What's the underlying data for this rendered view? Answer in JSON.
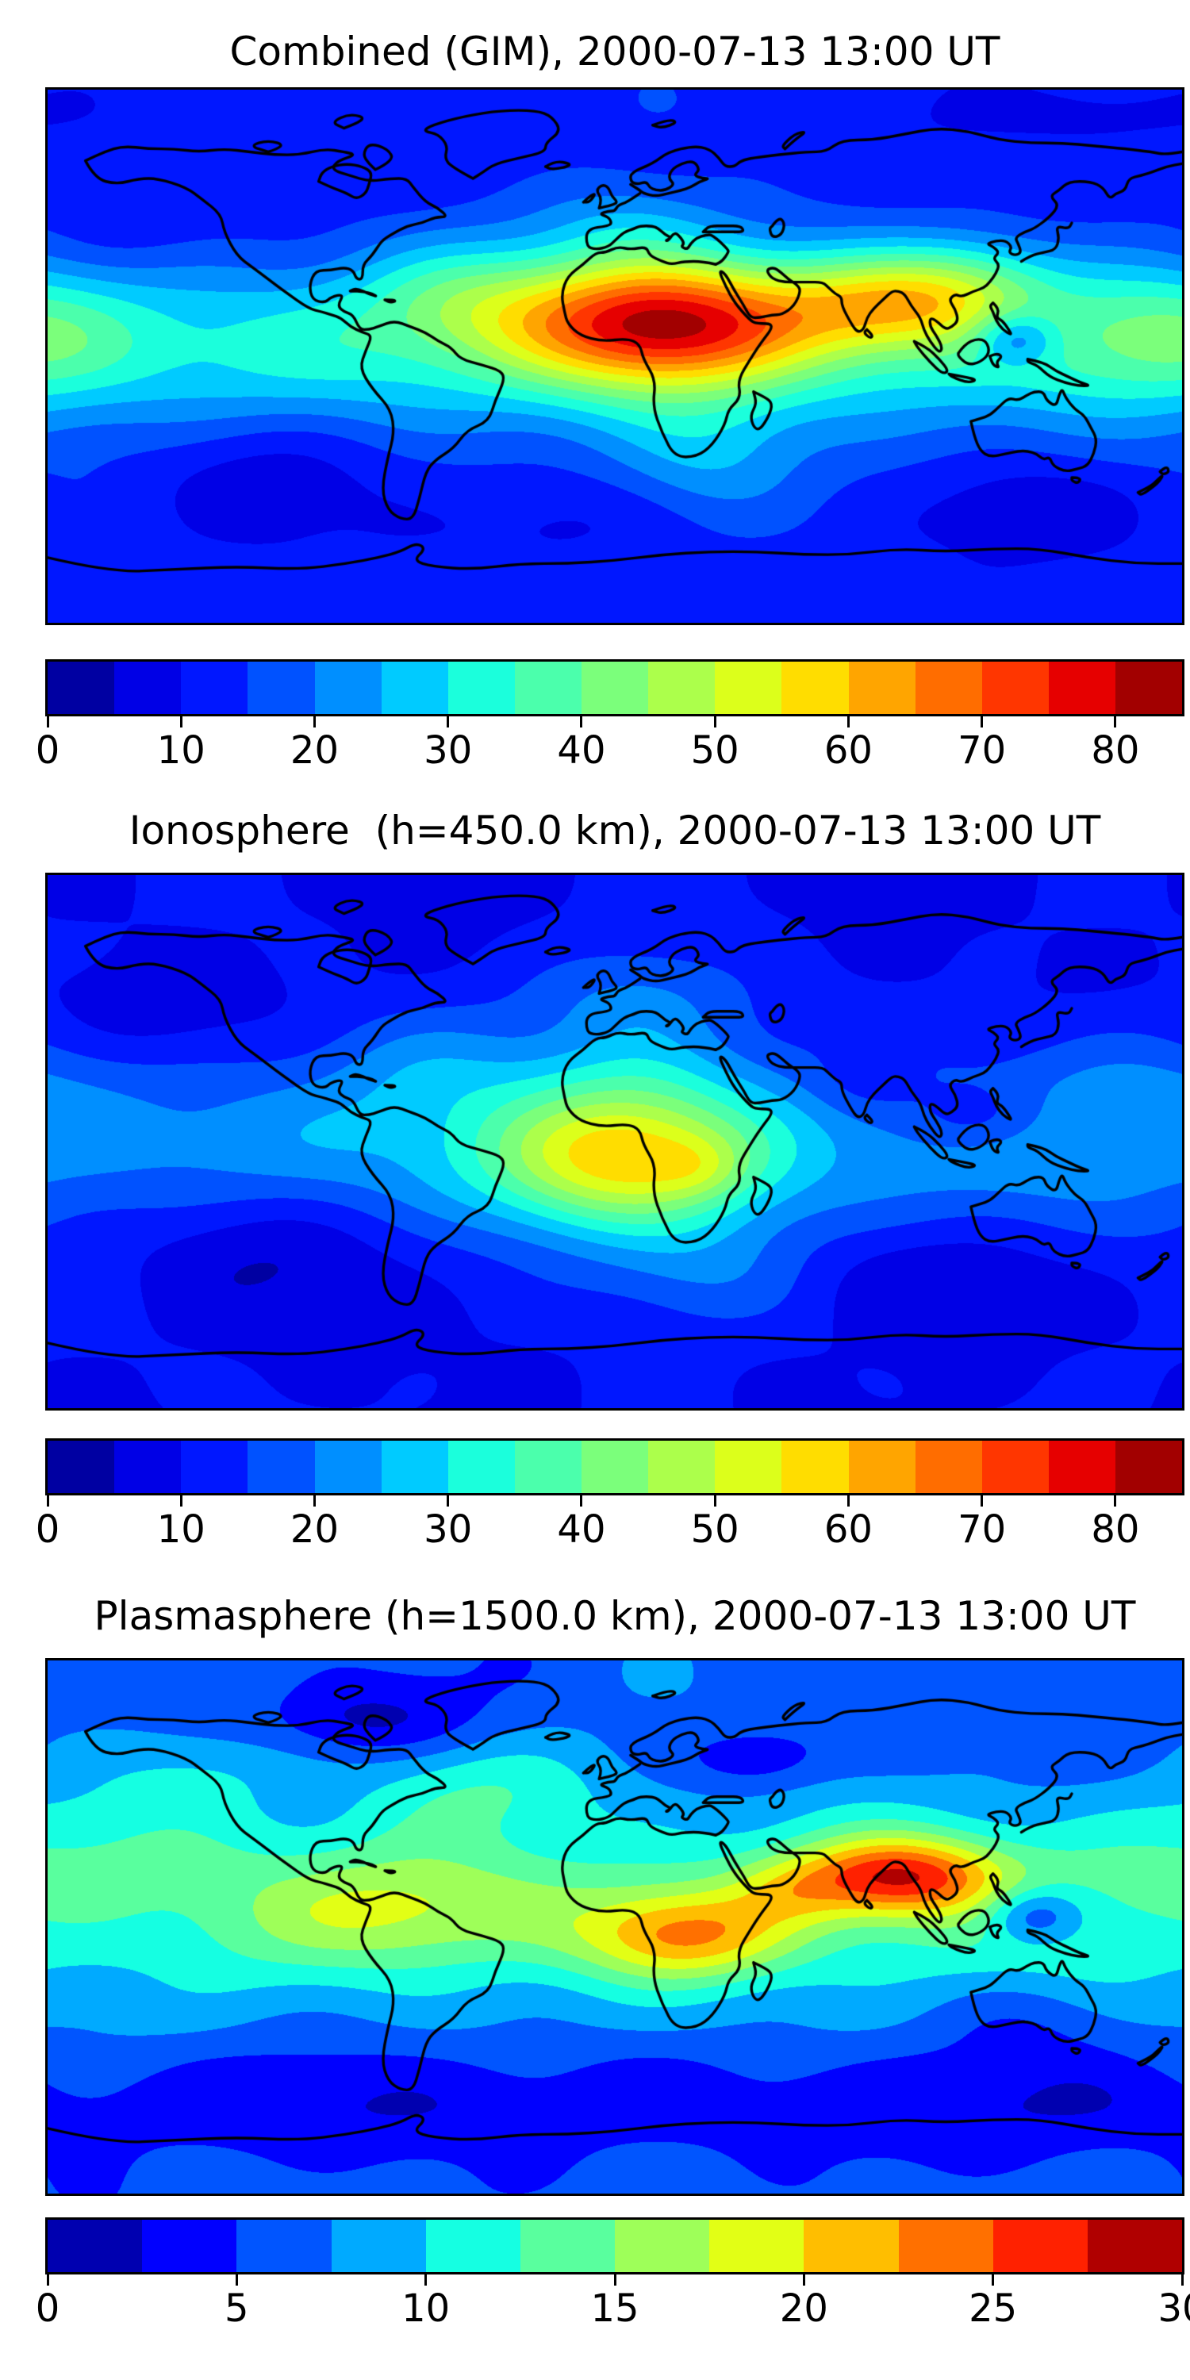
{
  "figure": {
    "background": "#ffffff",
    "coastline_color": "#000000",
    "frame_color": "#000000"
  },
  "chart_data": [
    {
      "type": "heatmap",
      "title": "Combined (GIM), 2000-07-13 13:00 UT",
      "colormap": "jet",
      "extent": {
        "lon": [
          -180,
          180
        ],
        "lat": [
          -90,
          90
        ]
      },
      "levels": {
        "min": 0,
        "max": 85,
        "step": 5
      },
      "colorbar_ticks": [
        0,
        10,
        20,
        30,
        40,
        50,
        60,
        70,
        80
      ],
      "field": {
        "base": 12,
        "wiggle_amp": 1.1,
        "blobs": [
          [
            0,
            3,
            19,
            9999,
            30
          ],
          [
            15,
            12,
            54,
            50,
            22
          ],
          [
            5,
            45,
            9,
            30,
            16
          ],
          [
            -50,
            20,
            10,
            32,
            18
          ],
          [
            88,
            18,
            26,
            34,
            16
          ],
          [
            115,
            25,
            12,
            28,
            16
          ],
          [
            175,
            8,
            13,
            35,
            22
          ],
          [
            30,
            -35,
            10,
            30,
            20
          ],
          [
            -155,
            42,
            -4,
            28,
            16
          ],
          [
            -115,
            -38,
            -6,
            40,
            22
          ],
          [
            127,
            6,
            -17,
            13,
            9
          ],
          [
            135,
            -52,
            -5,
            35,
            15
          ],
          [
            -20,
            -55,
            -4,
            30,
            15
          ],
          [
            150,
            82,
            -4,
            40,
            10
          ]
        ]
      }
    },
    {
      "type": "heatmap",
      "title": "Ionosphere  (h=450.0 km), 2000-07-13 13:00 UT",
      "colormap": "jet",
      "extent": {
        "lon": [
          -180,
          180
        ],
        "lat": [
          -90,
          90
        ]
      },
      "levels": {
        "min": 0,
        "max": 85,
        "step": 5
      },
      "colorbar_ticks": [
        0,
        10,
        20,
        30,
        40,
        50,
        60,
        70,
        80
      ],
      "field": {
        "base": 10,
        "wiggle_amp": 1.0,
        "blobs": [
          [
            0,
            -2,
            13,
            9999,
            30
          ],
          [
            2,
            -6,
            36,
            44,
            24
          ],
          [
            8,
            47,
            11,
            33,
            18
          ],
          [
            8,
            22,
            8,
            38,
            18
          ],
          [
            27,
            -9,
            6,
            14,
            10
          ],
          [
            28,
            -45,
            8,
            35,
            18
          ],
          [
            -60,
            25,
            7,
            35,
            20
          ],
          [
            170,
            20,
            5,
            40,
            20
          ],
          [
            115,
            8,
            -10,
            22,
            12
          ],
          [
            80,
            20,
            -6,
            18,
            12
          ],
          [
            -115,
            -35,
            -7,
            45,
            25
          ],
          [
            -150,
            45,
            -5,
            30,
            18
          ],
          [
            95,
            -45,
            -5,
            40,
            18
          ]
        ]
      }
    },
    {
      "type": "heatmap",
      "title": "Plasmasphere (h=1500.0 km), 2000-07-13 13:00 UT",
      "colormap": "jet",
      "extent": {
        "lon": [
          -180,
          180
        ],
        "lat": [
          -90,
          90
        ]
      },
      "levels": {
        "min": 0,
        "max": 30,
        "step": 2.5
      },
      "colorbar_ticks": [
        0,
        5,
        10,
        15,
        20,
        25,
        30
      ],
      "field": {
        "base": 6,
        "wiggle_amp": 0.65,
        "blobs": [
          [
            10,
            8,
            7,
            9999,
            35
          ],
          [
            90,
            17,
            15,
            32,
            13
          ],
          [
            22,
            -3,
            11,
            33,
            15
          ],
          [
            55,
            12,
            4,
            20,
            12
          ],
          [
            -65,
            5,
            5,
            45,
            18
          ],
          [
            -40,
            48,
            4,
            40,
            16
          ],
          [
            -130,
            52,
            3,
            30,
            14
          ],
          [
            -160,
            28,
            2,
            45,
            18
          ],
          [
            -80,
            70,
            -4,
            30,
            12
          ],
          [
            45,
            57,
            -4,
            22,
            10
          ],
          [
            133,
            4,
            -8,
            16,
            10
          ],
          [
            0,
            -60,
            -3,
            9999,
            18
          ],
          [
            130,
            -30,
            -2,
            30,
            15
          ]
        ]
      }
    }
  ]
}
